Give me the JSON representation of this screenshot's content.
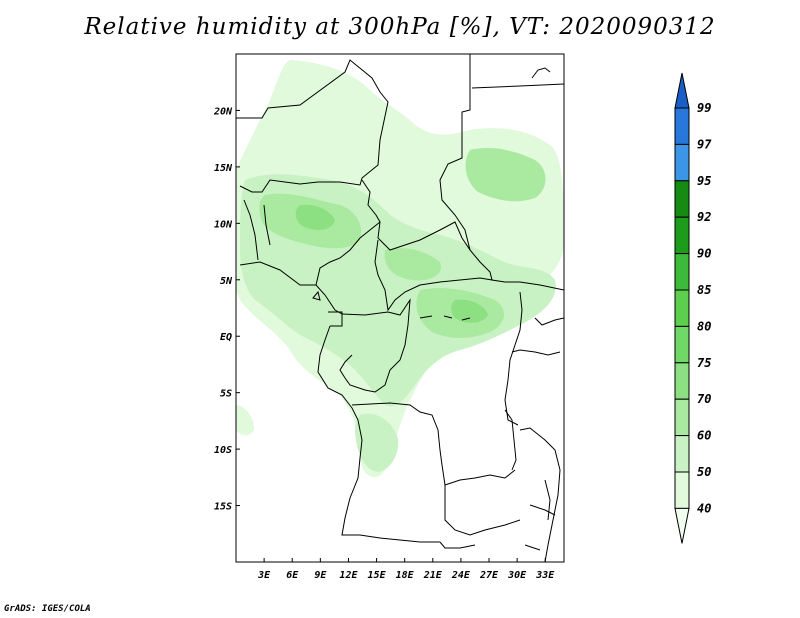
{
  "title": "Relative humidity at 300hPa [%], VT: 2020090312",
  "credit": "GrADS: IGES/COLA",
  "map": {
    "lat_ticks": [
      "20N",
      "15N",
      "10N",
      "5N",
      "EQ",
      "5S",
      "10S",
      "15S"
    ],
    "lat_values": [
      20,
      15,
      10,
      5,
      0,
      -5,
      -10,
      -15
    ],
    "lon_ticks": [
      "3E",
      "6E",
      "9E",
      "12E",
      "15E",
      "18E",
      "21E",
      "24E",
      "27E",
      "30E",
      "33E"
    ],
    "lon_values": [
      3,
      6,
      9,
      12,
      15,
      18,
      21,
      24,
      27,
      30,
      33
    ],
    "lon_range": [
      0,
      35
    ],
    "lat_range": [
      -20,
      25
    ]
  },
  "colorbar": {
    "labels": [
      "40",
      "50",
      "60",
      "70",
      "75",
      "80",
      "85",
      "90",
      "92",
      "95",
      "97",
      "99"
    ],
    "colors": [
      "#f0fff0",
      "#e1fadc",
      "#c8f2c3",
      "#aaeaa0",
      "#8ce081",
      "#70d866",
      "#5ccf4f",
      "#3cbb3a",
      "#1d9c1b",
      "#168b13",
      "#3c96e8",
      "#2878dc",
      "#1a5fc8"
    ]
  }
}
